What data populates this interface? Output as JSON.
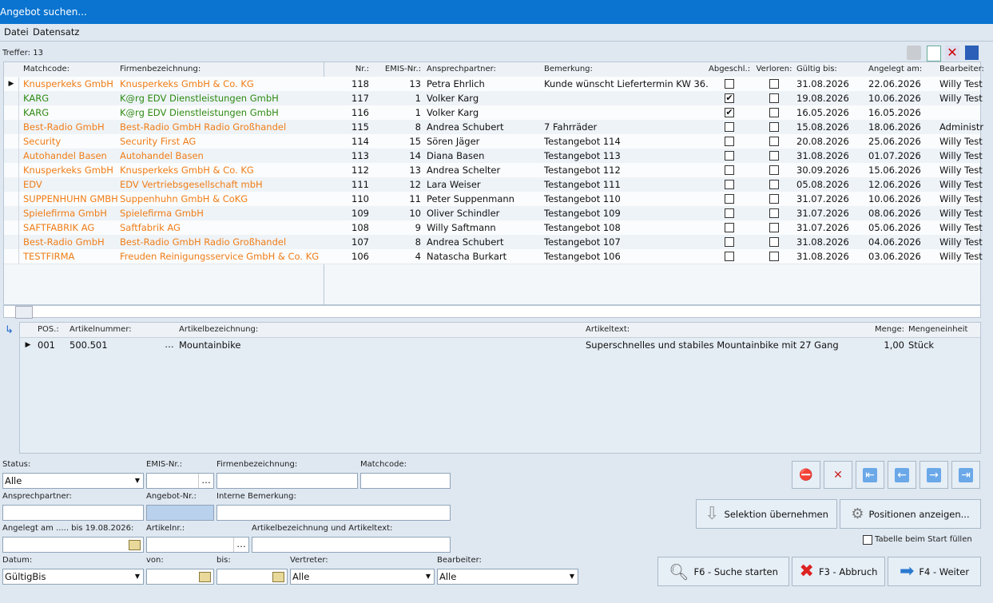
{
  "window": {
    "title": "Angebot suchen..."
  },
  "menu": [
    "Datei",
    "Datensatz"
  ],
  "hits": "Treffer: 13",
  "grid": {
    "columns": [
      "Matchcode:",
      "Firmenbezeichnung:",
      "Nr.:",
      "EMIS-Nr.:",
      "Ansprechpartner:",
      "Bemerkung:",
      "Abgeschl.:",
      "Verloren:",
      "Gültig bis:",
      "Angelegt am:",
      "Bearbeiter:"
    ],
    "rows": [
      {
        "color": "#f07d16",
        "cells": [
          "Knusperkeks GmbH",
          "Knusperkeks GmbH & Co. KG",
          118,
          13,
          "Petra Ehrlich",
          "Kunde wünscht Liefertermin KW 36.",
          false,
          false,
          "31.08.2026",
          "22.06.2026",
          "Willy Test"
        ]
      },
      {
        "color": "#2e8b12",
        "cells": [
          "KARG",
          "K@rg EDV Dienstleistungen GmbH",
          117,
          1,
          "Volker Karg",
          null,
          true,
          false,
          "19.08.2026",
          "10.06.2026",
          "Willy Test"
        ]
      },
      {
        "color": "#2e8b12",
        "cells": [
          "KARG",
          "K@rg EDV Dienstleistungen GmbH",
          116,
          1,
          "Volker Karg",
          null,
          true,
          false,
          "16.05.2026",
          "16.05.2026",
          null
        ]
      },
      {
        "color": "#f07d16",
        "cells": [
          "Best-Radio GmbH",
          "Best-Radio GmbH Radio Großhandel",
          115,
          8,
          "Andrea Schubert",
          "7 Fahrräder",
          false,
          false,
          "15.08.2026",
          "18.06.2026",
          "Administr"
        ]
      },
      {
        "color": "#f07d16",
        "cells": [
          "Security",
          "Security First AG",
          114,
          15,
          "Sören Jäger",
          "Testangebot 114",
          false,
          false,
          "20.08.2026",
          "25.06.2026",
          "Willy Test"
        ]
      },
      {
        "color": "#f07d16",
        "cells": [
          "Autohandel Basen",
          "Autohandel Basen",
          113,
          14,
          "Diana Basen",
          "Testangebot 113",
          false,
          false,
          "31.08.2026",
          "01.07.2026",
          "Willy Test"
        ]
      },
      {
        "color": "#f07d16",
        "cells": [
          "Knusperkeks GmbH",
          "Knusperkeks GmbH & Co. KG",
          112,
          13,
          "Andrea Schelter",
          "Testangebot 112",
          false,
          false,
          "30.09.2026",
          "15.06.2026",
          "Willy Test"
        ]
      },
      {
        "color": "#f07d16",
        "cells": [
          "EDV",
          "EDV Vertriebsgesellschaft mbH",
          111,
          12,
          "Lara Weiser",
          "Testangebot 111",
          false,
          false,
          "05.08.2026",
          "12.06.2026",
          "Willy Test"
        ]
      },
      {
        "color": "#f07d16",
        "cells": [
          "SUPPENHUHN GMBH",
          "Suppenhuhn GmbH & CoKG",
          110,
          11,
          "Peter Suppenmann",
          "Testangebot 110",
          false,
          false,
          "31.07.2026",
          "10.06.2026",
          "Willy Test"
        ]
      },
      {
        "color": "#f07d16",
        "cells": [
          "Spielefirma GmbH",
          "Spielefirma GmbH",
          109,
          10,
          "Oliver Schindler",
          "Testangebot 109",
          false,
          false,
          "31.07.2026",
          "08.06.2026",
          "Willy Test"
        ]
      },
      {
        "color": "#f07d16",
        "cells": [
          "SAFTFABRIK AG",
          "Saftfabrik AG",
          108,
          9,
          "Willy Saftmann",
          "Testangebot 108",
          false,
          false,
          "31.07.2026",
          "05.06.2026",
          "Willy Test"
        ]
      },
      {
        "color": "#f07d16",
        "cells": [
          "Best-Radio GmbH",
          "Best-Radio GmbH Radio Großhandel",
          107,
          8,
          "Andrea Schubert",
          "Testangebot 107",
          false,
          false,
          "31.08.2026",
          "04.06.2026",
          "Willy Test"
        ]
      },
      {
        "color": "#f07d16",
        "cells": [
          "TESTFIRMA",
          "Freuden Reinigungsservice GmbH & Co. KG",
          106,
          4,
          "Natascha Burkart",
          "Testangebot 106",
          false,
          false,
          "31.08.2026",
          "03.06.2026",
          "Willy Test"
        ]
      }
    ]
  },
  "detail": {
    "columns": [
      "POS.:",
      "Artikelnummer:",
      "Artikelbezeichnung:",
      "Artikeltext:",
      "Menge:",
      "Mengeneinheit"
    ],
    "rows": [
      [
        "001",
        "500.501",
        "Mountainbike",
        "Superschnelles und stabiles Mountainbike mit 27 Gang",
        "1,00",
        "Stück"
      ]
    ]
  },
  "filters": [
    {
      "label": "Status:",
      "value": "Alle"
    },
    {
      "label": "EMIS-Nr.:"
    },
    {
      "label": "Firmenbezeichnung:"
    },
    {
      "label": "Matchcode:"
    },
    {
      "label": "Ansprechpartner:"
    },
    {
      "label": "Angebot-Nr.:"
    },
    {
      "label": "Interne Bemerkung:"
    },
    {
      "label": "Angelegt am ..... bis 19.08.2026:"
    },
    {
      "label": "Artikelnr.:"
    },
    {
      "label": "Artikelbezeichnung und Artikeltext:"
    },
    {
      "label": "Datum:",
      "value": "GültigBis"
    },
    {
      "label": "von:"
    },
    {
      "label": "bis:"
    },
    {
      "label": "Vertreter:",
      "value": "Alle"
    },
    {
      "label": "Bearbeiter:",
      "value": "Alle"
    }
  ],
  "buttons": {
    "select": "Selektion übernehmen",
    "positions": "Positionen anzeigen...",
    "fill": "Tabelle beim Start füllen",
    "search": "F6 - Suche starten",
    "cancel": "F3 - Abbruch",
    "next": "F4 - Weiter"
  }
}
